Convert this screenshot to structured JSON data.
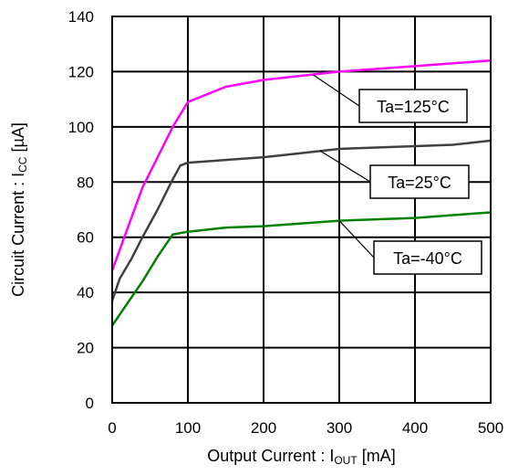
{
  "chart_data": {
    "type": "line",
    "xlim": [
      0,
      500
    ],
    "ylim": [
      0,
      140
    ],
    "x_ticks": [
      0,
      100,
      200,
      300,
      400,
      500
    ],
    "y_ticks": [
      0,
      20,
      40,
      60,
      80,
      100,
      120,
      140
    ],
    "x_tick_labels": [
      "0",
      "100",
      "200",
      "300",
      "400",
      "500"
    ],
    "y_tick_labels": [
      "0",
      "20",
      "40",
      "60",
      "80",
      "100",
      "120",
      "140"
    ],
    "xlabel": {
      "main": "Output Current : I",
      "sub": "OUT",
      "unit": " [mA]"
    },
    "ylabel": {
      "main": "Circuit Current : I",
      "sub": "CC",
      "unit": " [µA]"
    },
    "grid": true,
    "series": [
      {
        "name": "Ta=125°C",
        "color": "#ff00ff",
        "x": [
          0,
          40,
          80,
          100,
          150,
          200,
          300,
          400,
          500
        ],
        "y": [
          48,
          78,
          100,
          109,
          114.5,
          117,
          120,
          122,
          124
        ]
      },
      {
        "name": "Ta=25°C",
        "color": "#404040",
        "x": [
          0,
          10,
          25,
          40,
          60,
          80,
          90,
          100,
          150,
          200,
          250,
          300,
          400,
          450,
          500
        ],
        "y": [
          37,
          45,
          52,
          60,
          70,
          81,
          86,
          87,
          88,
          89,
          90.5,
          92,
          93,
          93.5,
          95
        ]
      },
      {
        "name": "Ta=-40°C",
        "color": "#008000",
        "x": [
          0,
          20,
          40,
          60,
          80,
          100,
          150,
          200,
          250,
          300,
          400,
          450,
          500
        ],
        "y": [
          28,
          36,
          44,
          53,
          61,
          62,
          63.5,
          64,
          65,
          66,
          67,
          68,
          69
        ]
      }
    ],
    "annotations": [
      {
        "text": "Ta=125°C",
        "series": 0,
        "at_x": 265
      },
      {
        "text": "Ta=25°C",
        "series": 1,
        "at_x": 275
      },
      {
        "text": "Ta=-40°C",
        "series": 2,
        "at_x": 300
      }
    ]
  }
}
